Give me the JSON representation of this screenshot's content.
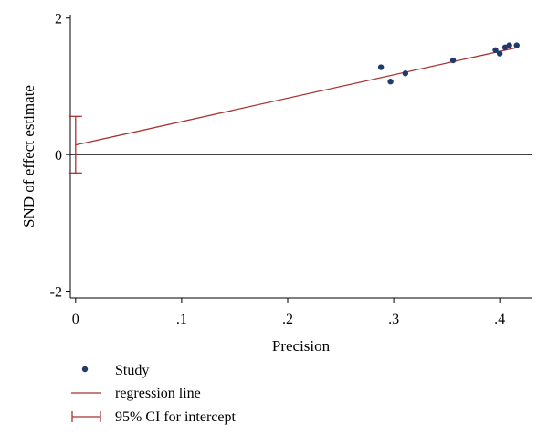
{
  "chart_data": {
    "type": "scatter",
    "xlabel": "Precision",
    "ylabel": "SND of effect estimate",
    "xlim": [
      -0.005,
      0.43
    ],
    "ylim": [
      -2.1,
      2.05
    ],
    "x_ticks": [
      0,
      0.1,
      0.2,
      0.3,
      0.4
    ],
    "x_tick_labels": [
      "0",
      ".1",
      ".2",
      ".3",
      ".4"
    ],
    "y_ticks": [
      -2,
      0,
      2
    ],
    "y_tick_labels": [
      "-2",
      "0",
      "2"
    ],
    "reference_line_y": 0,
    "legend_position": "bottom-left",
    "series": [
      {
        "name": "Study",
        "kind": "points",
        "color": "#1f3a6b",
        "points": [
          {
            "x": 0.288,
            "y": 1.28
          },
          {
            "x": 0.297,
            "y": 1.07
          },
          {
            "x": 0.311,
            "y": 1.19
          },
          {
            "x": 0.356,
            "y": 1.38
          },
          {
            "x": 0.396,
            "y": 1.53
          },
          {
            "x": 0.4,
            "y": 1.48
          },
          {
            "x": 0.405,
            "y": 1.57
          },
          {
            "x": 0.409,
            "y": 1.6
          },
          {
            "x": 0.416,
            "y": 1.6
          }
        ]
      },
      {
        "name": "regression line",
        "kind": "line",
        "color": "#a83232",
        "intercept": 0.14,
        "slope": 3.43,
        "x_range": [
          0,
          0.416
        ]
      },
      {
        "name": "95% CI for intercept",
        "kind": "errorbar",
        "color": "#a83232",
        "x": 0,
        "lower": -0.27,
        "upper": 0.56
      }
    ]
  }
}
